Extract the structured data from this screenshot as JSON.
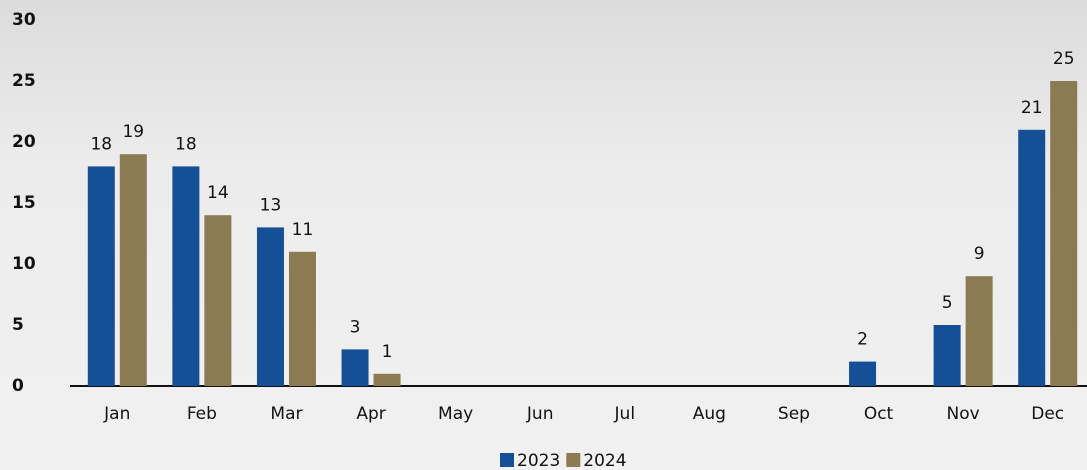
{
  "chart_data": {
    "type": "bar",
    "categories": [
      "Jan",
      "Feb",
      "Mar",
      "Apr",
      "May",
      "Jun",
      "Jul",
      "Aug",
      "Sep",
      "Oct",
      "Nov",
      "Dec"
    ],
    "series": [
      {
        "name": "2023",
        "color": "#154f96",
        "values": [
          18,
          18,
          13,
          3,
          null,
          null,
          null,
          null,
          null,
          2,
          5,
          21
        ]
      },
      {
        "name": "2024",
        "color": "#8c7a52",
        "values": [
          19,
          14,
          11,
          1,
          null,
          null,
          null,
          null,
          null,
          null,
          9,
          25
        ]
      }
    ],
    "ylim": [
      0,
      30
    ],
    "yticks": [
      0,
      5,
      10,
      15,
      20,
      25,
      30
    ],
    "grid": false,
    "legend": "bottom"
  }
}
